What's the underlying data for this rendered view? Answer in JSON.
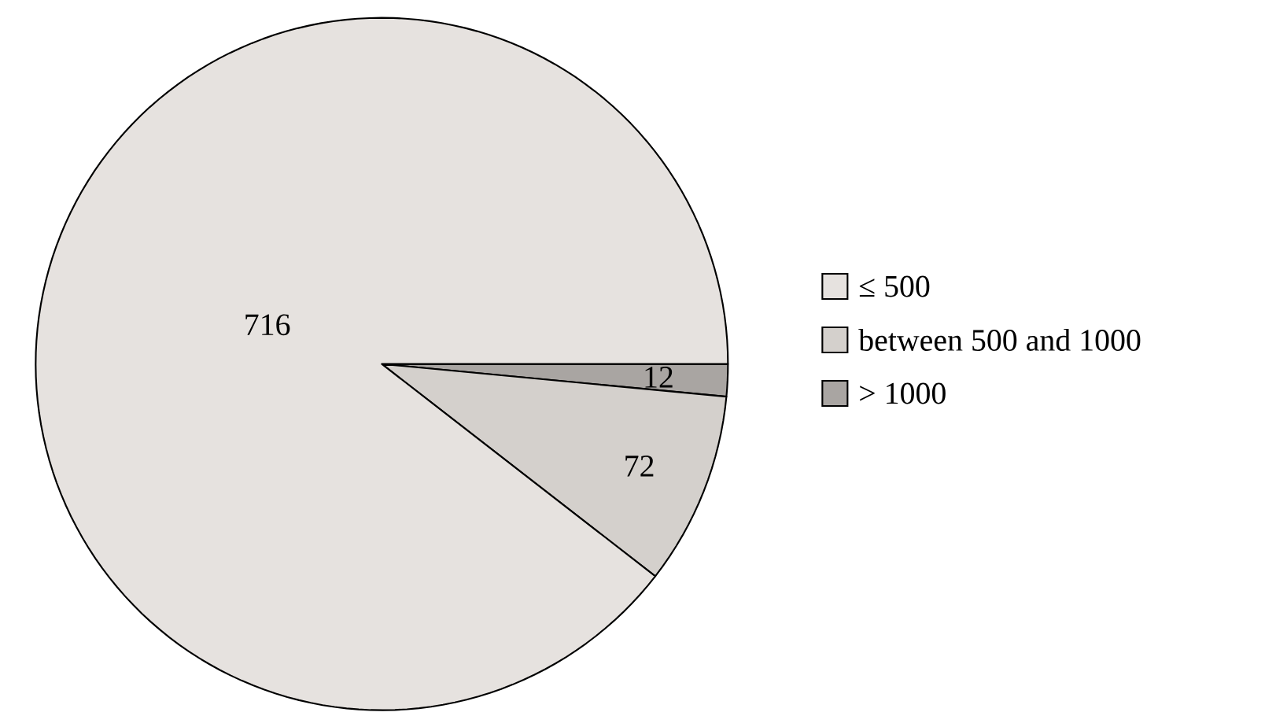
{
  "chart_data": {
    "type": "pie",
    "categories": [
      "≤ 500",
      "between 500 and 1000",
      "> 1000"
    ],
    "values": [
      716,
      72,
      12
    ],
    "colors": [
      "#e6e2df",
      "#d4d0cc",
      "#a9a5a2"
    ],
    "data_labels": true,
    "legend": "right"
  }
}
